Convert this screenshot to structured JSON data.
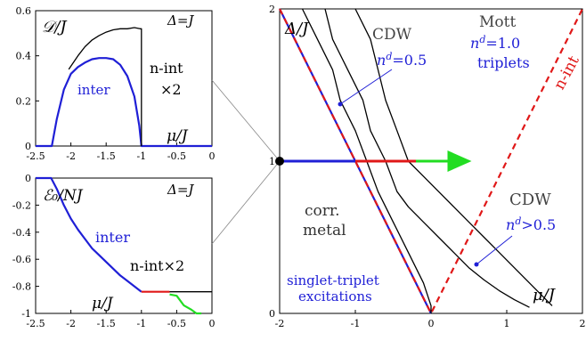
{
  "chart_data": [
    {
      "panel": "top-left",
      "type": "line",
      "ylabel": "𝒟/J",
      "xlabel": "μ/J",
      "corner_note": "Δ=J",
      "xlim": [
        -2.5,
        0
      ],
      "ylim": [
        0,
        0.6
      ],
      "xticks": [
        "-2.5",
        "-2",
        "-1.5",
        "-1",
        "-0.5",
        "0"
      ],
      "yticks": [
        "0",
        "0.2",
        "0.4",
        "0.6"
      ],
      "series": [
        {
          "name": "inter",
          "color": "#1f1fd6",
          "points": [
            [
              -2.5,
              0
            ],
            [
              -2.27,
              0
            ],
            [
              -2.2,
              0.12
            ],
            [
              -2.1,
              0.25
            ],
            [
              -2.0,
              0.32
            ],
            [
              -1.9,
              0.35
            ],
            [
              -1.8,
              0.37
            ],
            [
              -1.7,
              0.385
            ],
            [
              -1.6,
              0.39
            ],
            [
              -1.5,
              0.39
            ],
            [
              -1.4,
              0.385
            ],
            [
              -1.3,
              0.36
            ],
            [
              -1.2,
              0.31
            ],
            [
              -1.1,
              0.22
            ],
            [
              -1.03,
              0.09
            ],
            [
              -1.0,
              0
            ],
            [
              0,
              0
            ]
          ]
        },
        {
          "name": "n-int ×2",
          "color": "#000000",
          "points": [
            [
              -2.03,
              0.34
            ],
            [
              -1.9,
              0.4
            ],
            [
              -1.8,
              0.44
            ],
            [
              -1.7,
              0.47
            ],
            [
              -1.6,
              0.49
            ],
            [
              -1.5,
              0.505
            ],
            [
              -1.4,
              0.515
            ],
            [
              -1.3,
              0.52
            ],
            [
              -1.2,
              0.52
            ],
            [
              -1.1,
              0.525
            ],
            [
              -1.02,
              0.52
            ],
            [
              -1.0,
              0.52
            ],
            [
              -1.0,
              0
            ]
          ]
        }
      ],
      "labels": {
        "inter": "inter",
        "nint_1": "n-int",
        "nint_2": "×2"
      }
    },
    {
      "panel": "bottom-left",
      "type": "line",
      "ylabel": "ℰ₀/NJ",
      "xlabel": "μ/J",
      "corner_note": "Δ=J",
      "xlim": [
        -2.5,
        0
      ],
      "ylim": [
        -1,
        0
      ],
      "xticks": [
        "-2.5",
        "-2",
        "-1.5",
        "-1",
        "-0.5",
        "0"
      ],
      "yticks": [
        "0",
        "-0.2",
        "-0.4",
        "-0.6",
        "-0.8",
        "-1"
      ],
      "series": [
        {
          "name": "inter",
          "color": "#1f1fd6",
          "points": [
            [
              -2.5,
              0
            ],
            [
              -2.28,
              0
            ],
            [
              -2.2,
              -0.08
            ],
            [
              -2.1,
              -0.2
            ],
            [
              -2.0,
              -0.3
            ],
            [
              -1.9,
              -0.38
            ],
            [
              -1.8,
              -0.45
            ],
            [
              -1.7,
              -0.52
            ],
            [
              -1.6,
              -0.57
            ],
            [
              -1.5,
              -0.62
            ],
            [
              -1.4,
              -0.67
            ],
            [
              -1.3,
              -0.72
            ],
            [
              -1.2,
              -0.76
            ],
            [
              -1.1,
              -0.8
            ],
            [
              -1.0,
              -0.84
            ]
          ]
        },
        {
          "name": "red",
          "color": "#e01818",
          "points": [
            [
              -1.0,
              -0.84
            ],
            [
              -0.6,
              -0.84
            ]
          ]
        },
        {
          "name": "black",
          "color": "#000000",
          "points": [
            [
              -0.6,
              -0.84
            ],
            [
              0,
              -0.84
            ]
          ]
        },
        {
          "name": "green",
          "color": "#22dd22",
          "points": [
            [
              -0.6,
              -0.86
            ],
            [
              -0.5,
              -0.87
            ],
            [
              -0.4,
              -0.94
            ],
            [
              -0.3,
              -0.97
            ],
            [
              -0.22,
              -1.0
            ],
            [
              -0.15,
              -1.0
            ]
          ]
        }
      ],
      "labels": {
        "inter": "inter",
        "nint": "n-int×2"
      }
    },
    {
      "panel": "right",
      "type": "line",
      "ylabel": "Δ/J",
      "xlabel": "μ/J",
      "xlim": [
        -2,
        2
      ],
      "ylim": [
        0,
        2
      ],
      "xticks": [
        "-2",
        "-1",
        "0",
        "1",
        "2"
      ],
      "yticks": [
        "0",
        "1",
        "2"
      ],
      "series": [
        {
          "name": "blue-line",
          "color": "#1f1fd6",
          "points": [
            [
              -2,
              2
            ],
            [
              0,
              0
            ]
          ]
        },
        {
          "name": "red-dashed",
          "color": "#e01818",
          "dashed": true,
          "points": [
            [
              -2,
              2
            ],
            [
              0,
              0
            ],
            [
              2,
              2
            ]
          ]
        },
        {
          "name": "black-1",
          "color": "#000000",
          "points": [
            [
              -1.7,
              2
            ],
            [
              -1.5,
              1.8
            ],
            [
              -1.3,
              1.6
            ],
            [
              -1.2,
              1.4
            ],
            [
              -1.0,
              1.2
            ],
            [
              -0.85,
              1.0
            ],
            [
              -0.7,
              0.8
            ],
            [
              -0.5,
              0.6
            ],
            [
              -0.3,
              0.4
            ],
            [
              -0.1,
              0.2
            ],
            [
              -0.02,
              0.08
            ],
            [
              0,
              0.05
            ],
            [
              0,
              0
            ]
          ]
        },
        {
          "name": "black-2",
          "color": "#000000",
          "points": [
            [
              -1.4,
              2
            ],
            [
              -1.3,
              1.8
            ],
            [
              -1.1,
              1.6
            ],
            [
              -0.9,
              1.4
            ],
            [
              -0.8,
              1.2
            ],
            [
              -0.6,
              1.0
            ],
            [
              -0.45,
              0.8
            ],
            [
              -0.3,
              0.7
            ],
            [
              -0.1,
              0.6
            ],
            [
              0.1,
              0.5
            ],
            [
              0.3,
              0.4
            ],
            [
              0.5,
              0.3
            ],
            [
              0.7,
              0.22
            ],
            [
              0.9,
              0.15
            ],
            [
              1.1,
              0.09
            ],
            [
              1.3,
              0.04
            ]
          ]
        },
        {
          "name": "black-3",
          "color": "#000000",
          "points": [
            [
              -1.0,
              2
            ],
            [
              -0.8,
              1.8
            ],
            [
              -0.7,
              1.6
            ],
            [
              -0.6,
              1.4
            ],
            [
              -0.45,
              1.2
            ],
            [
              -0.3,
              1.0
            ],
            [
              -0.1,
              0.9
            ],
            [
              0.1,
              0.8
            ],
            [
              0.3,
              0.7
            ],
            [
              0.5,
              0.6
            ],
            [
              0.7,
              0.5
            ],
            [
              0.9,
              0.4
            ],
            [
              1.1,
              0.3
            ],
            [
              1.3,
              0.2
            ],
            [
              1.5,
              0.1
            ],
            [
              1.6,
              0.05
            ]
          ]
        },
        {
          "name": "arrow-blue",
          "color": "#1f1fd6",
          "points": [
            [
              -2,
              1
            ],
            [
              -1.0,
              1
            ]
          ]
        },
        {
          "name": "arrow-red",
          "color": "#e01818",
          "points": [
            [
              -1.0,
              1
            ],
            [
              -0.2,
              1
            ]
          ]
        },
        {
          "name": "arrow-green",
          "color": "#22dd22",
          "points": [
            [
              -0.2,
              1
            ],
            [
              0.5,
              1
            ]
          ]
        }
      ],
      "labels": {
        "cdw_top": "CDW",
        "nd_top": "n",
        "nd_top_sup": "d",
        "nd_top_val": "=0.5",
        "mott": "Mott",
        "nd_mott": "n",
        "nd_mott_sup": "d",
        "nd_mott_val": "=1.0",
        "triplets": "triplets",
        "nint": "n-int",
        "cdw_right": "CDW",
        "nd_right": "n",
        "nd_right_sup": "d",
        "nd_right_val": ">0.5",
        "corr": "corr.",
        "metal": "metal",
        "singlet1": "singlet-triplet",
        "singlet2": "excitations"
      }
    }
  ]
}
